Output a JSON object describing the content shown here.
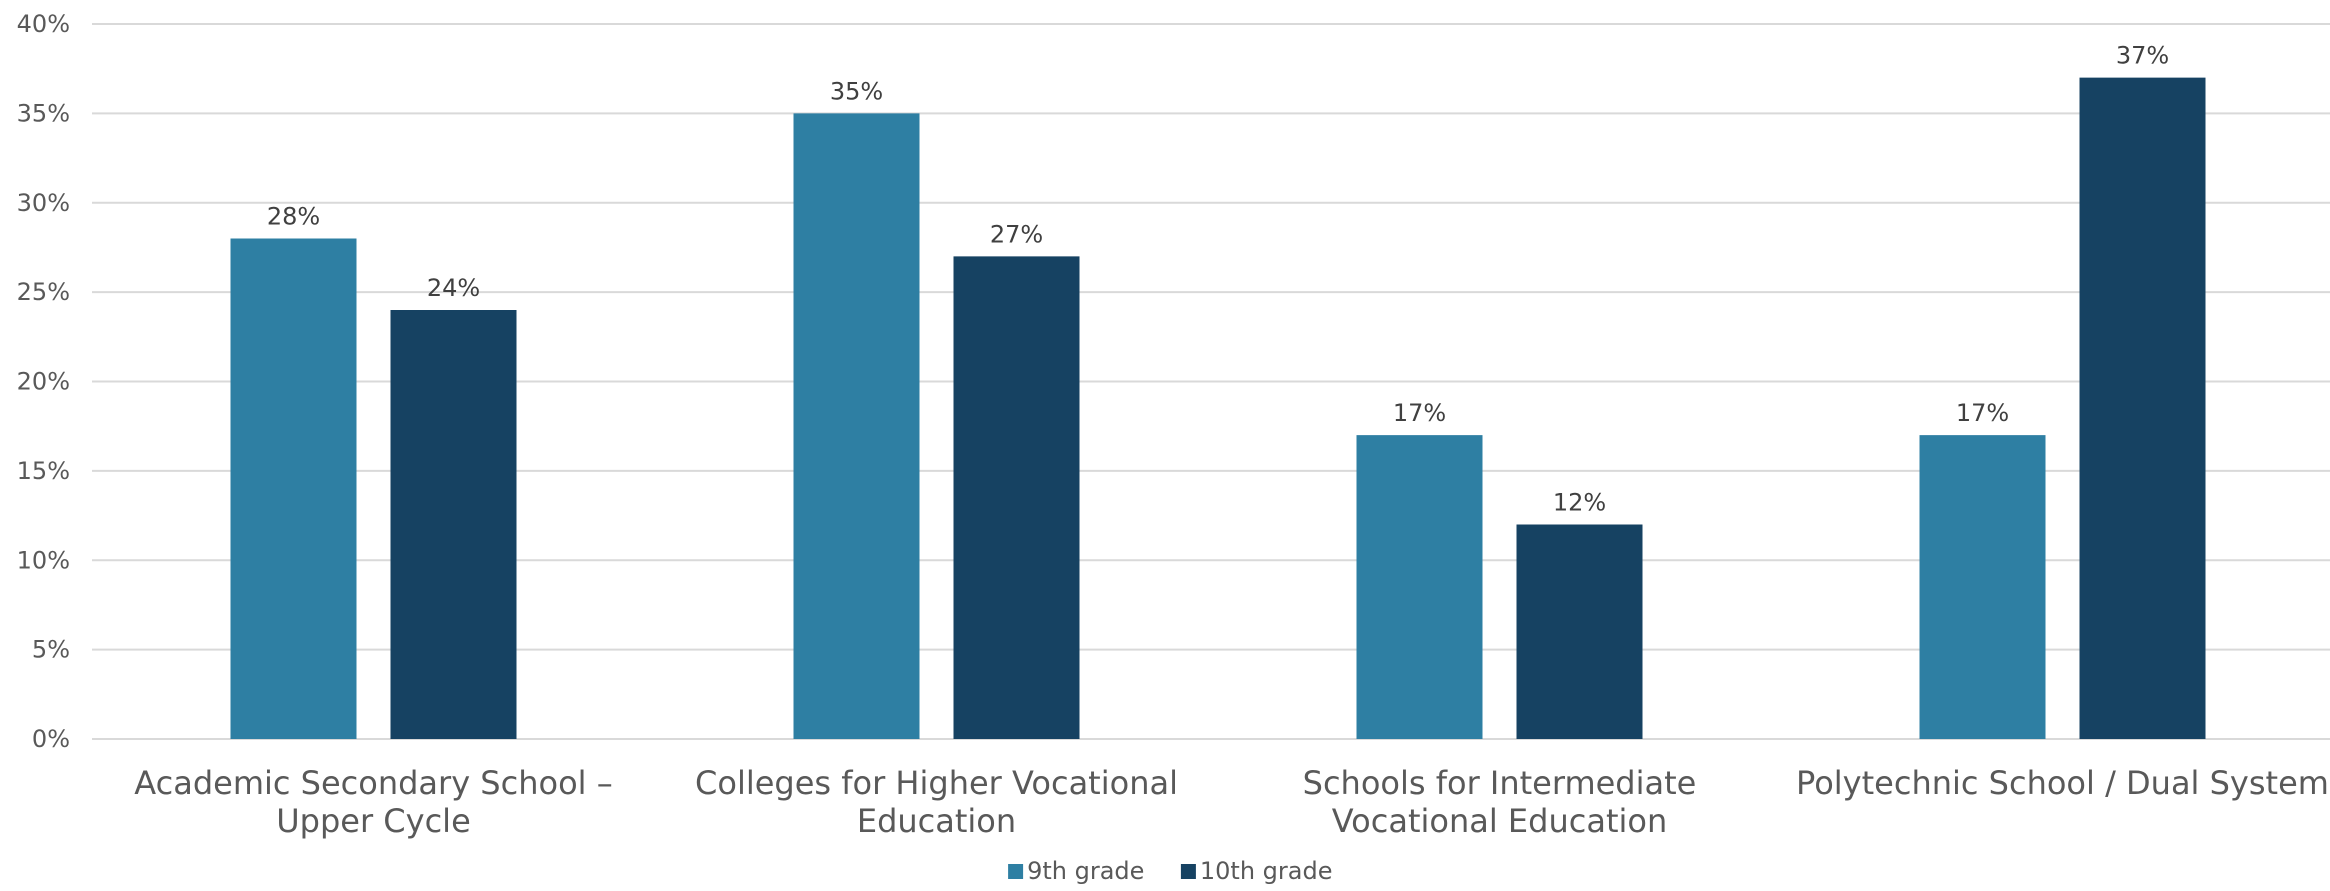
{
  "chart_data": {
    "type": "bar",
    "categories": [
      [
        "Academic Secondary School –",
        "Upper Cycle"
      ],
      [
        "Colleges for Higher Vocational",
        "Education"
      ],
      [
        "Schools for Intermediate",
        "Vocational Education"
      ],
      [
        "Polytechnic School / Dual System"
      ]
    ],
    "series": [
      {
        "name": "9th grade",
        "values": [
          28,
          35,
          17,
          17
        ],
        "color": "#2e7fa3"
      },
      {
        "name": "10th grade",
        "values": [
          24,
          27,
          12,
          37
        ],
        "color": "#164262"
      }
    ],
    "value_format": "percent",
    "ylim": [
      0,
      40
    ],
    "yticks": [
      0,
      5,
      10,
      15,
      20,
      25,
      30,
      35,
      40
    ],
    "ytick_labels": [
      "0%",
      "5%",
      "10%",
      "15%",
      "20%",
      "25%",
      "30%",
      "35%",
      "40%"
    ],
    "data_labels": [
      [
        "28%",
        "35%",
        "17%",
        "17%"
      ],
      [
        "24%",
        "27%",
        "12%",
        "37%"
      ]
    ],
    "title": "",
    "xlabel": "",
    "ylabel": "",
    "grid": true,
    "legend_position": "bottom-center",
    "colors": {
      "grid": "#d9d9d9",
      "axis": "#d9d9d9"
    }
  }
}
